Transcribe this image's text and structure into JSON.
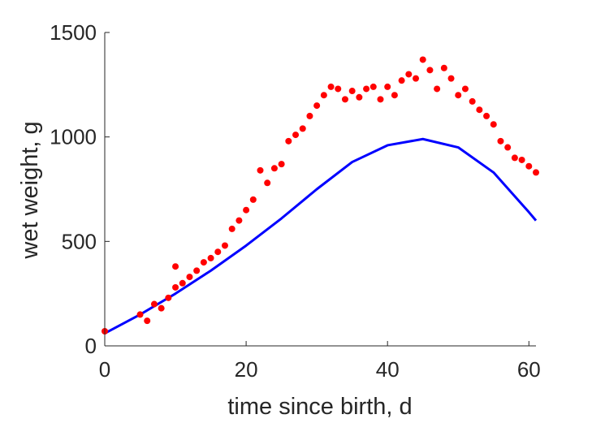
{
  "chart_data": {
    "type": "scatter",
    "title": "",
    "xlabel": "time since birth, d",
    "ylabel": "wet weight, g",
    "xlim": [
      0,
      61
    ],
    "ylim": [
      0,
      1500
    ],
    "xticks": [
      0,
      20,
      40,
      60
    ],
    "yticks": [
      0,
      500,
      1000,
      1500
    ],
    "grid": false,
    "legend": "none",
    "series": [
      {
        "type": "line",
        "color": "#0000ff",
        "x": [
          0,
          5,
          10,
          15,
          20,
          25,
          30,
          35,
          40,
          45,
          50,
          55,
          60,
          61
        ],
        "y": [
          60,
          150,
          250,
          360,
          480,
          610,
          750,
          880,
          960,
          990,
          950,
          830,
          640,
          600
        ]
      },
      {
        "type": "scatter",
        "color": "#ff0000",
        "x": [
          0,
          5,
          6,
          7,
          8,
          9,
          10,
          10,
          11,
          12,
          13,
          14,
          15,
          16,
          17,
          18,
          19,
          20,
          21,
          22,
          23,
          24,
          25,
          26,
          27,
          28,
          29,
          30,
          31,
          32,
          33,
          34,
          35,
          36,
          37,
          38,
          39,
          40,
          41,
          42,
          43,
          44,
          45,
          46,
          47,
          48,
          49,
          50,
          51,
          52,
          53,
          54,
          55,
          56,
          57,
          58,
          59,
          60,
          61
        ],
        "y": [
          70,
          150,
          120,
          200,
          180,
          230,
          280,
          380,
          300,
          330,
          360,
          400,
          420,
          450,
          480,
          560,
          600,
          650,
          700,
          840,
          780,
          850,
          870,
          980,
          1010,
          1040,
          1100,
          1150,
          1200,
          1240,
          1230,
          1180,
          1220,
          1190,
          1230,
          1240,
          1180,
          1240,
          1200,
          1270,
          1300,
          1280,
          1370,
          1320,
          1230,
          1330,
          1280,
          1200,
          1230,
          1170,
          1130,
          1100,
          1060,
          980,
          950,
          900,
          890,
          860,
          830
        ]
      }
    ]
  }
}
